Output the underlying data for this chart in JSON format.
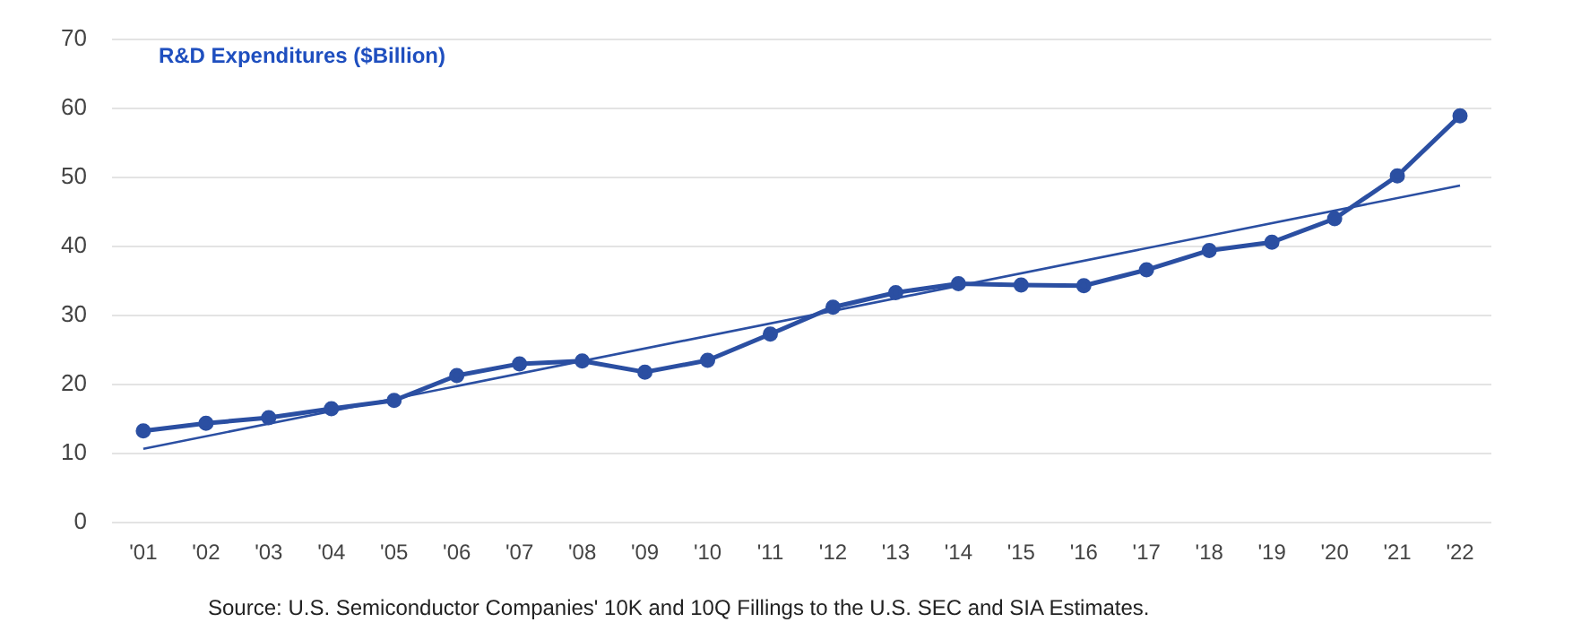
{
  "chart_data": {
    "type": "line",
    "title": "R&D Expenditures ($Billion)",
    "categories": [
      "'01",
      "'02",
      "'03",
      "'04",
      "'05",
      "'06",
      "'07",
      "'08",
      "'09",
      "'10",
      "'11",
      "'12",
      "'13",
      "'14",
      "'15",
      "'16",
      "'17",
      "'18",
      "'19",
      "'20",
      "'21",
      "'22"
    ],
    "series": [
      {
        "color": "#2b4fa2",
        "marker": "circle",
        "values": [
          13.3,
          14.4,
          15.2,
          16.5,
          17.7,
          21.3,
          23.0,
          23.4,
          21.8,
          23.5,
          27.3,
          31.2,
          33.3,
          34.6,
          34.4,
          34.3,
          36.6,
          39.4,
          40.6,
          44.0,
          50.2,
          58.9
        ]
      },
      {
        "type": "line",
        "color": "#2b4fa2",
        "marker": "none",
        "x": [
          "'01",
          "'22"
        ],
        "values": [
          10.7,
          48.8
        ]
      }
    ],
    "ylim": [
      0,
      70
    ],
    "yticks": [
      0,
      10,
      20,
      30,
      40,
      50,
      60,
      70
    ],
    "grid": "y",
    "legend": false,
    "annotations": [
      "Source: U.S. Semiconductor Companies' 10K and 10Q Fillings to the U.S. SEC and SIA Estimates."
    ]
  }
}
